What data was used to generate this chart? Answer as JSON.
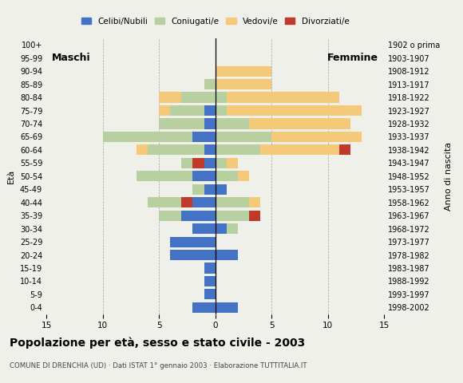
{
  "age_groups": [
    "0-4",
    "5-9",
    "10-14",
    "15-19",
    "20-24",
    "25-29",
    "30-34",
    "35-39",
    "40-44",
    "45-49",
    "50-54",
    "55-59",
    "60-64",
    "65-69",
    "70-74",
    "75-79",
    "80-84",
    "85-89",
    "90-94",
    "95-99",
    "100+"
  ],
  "birth_years": [
    "1998-2002",
    "1993-1997",
    "1988-1992",
    "1983-1987",
    "1978-1982",
    "1973-1977",
    "1968-1972",
    "1963-1967",
    "1958-1962",
    "1953-1957",
    "1948-1952",
    "1943-1947",
    "1938-1942",
    "1933-1937",
    "1928-1932",
    "1923-1927",
    "1918-1922",
    "1913-1917",
    "1908-1912",
    "1903-1907",
    "1902 o prima"
  ],
  "colors": {
    "celibi": "#4472c4",
    "coniugati": "#b8cfa0",
    "vedovi": "#f5c97a",
    "divorziati": "#c0392b"
  },
  "males": {
    "celibi": [
      2,
      1,
      1,
      1,
      4,
      4,
      2,
      3,
      2,
      1,
      2,
      1,
      1,
      2,
      1,
      1,
      0,
      0,
      0,
      0,
      0
    ],
    "coniugati": [
      0,
      0,
      0,
      0,
      0,
      0,
      0,
      2,
      3,
      1,
      5,
      1,
      5,
      8,
      4,
      3,
      3,
      1,
      0,
      0,
      0
    ],
    "vedovi": [
      0,
      0,
      0,
      0,
      0,
      0,
      0,
      0,
      0,
      0,
      0,
      0,
      1,
      0,
      0,
      1,
      2,
      0,
      0,
      0,
      0
    ],
    "divorziati": [
      0,
      0,
      0,
      0,
      0,
      0,
      0,
      0,
      1,
      0,
      0,
      1,
      0,
      0,
      0,
      0,
      0,
      0,
      0,
      0,
      0
    ]
  },
  "females": {
    "celibi": [
      2,
      0,
      0,
      0,
      2,
      0,
      1,
      0,
      0,
      1,
      0,
      0,
      0,
      0,
      0,
      0,
      0,
      0,
      0,
      0,
      0
    ],
    "coniugati": [
      0,
      0,
      0,
      0,
      0,
      0,
      1,
      3,
      3,
      0,
      2,
      1,
      4,
      5,
      3,
      1,
      1,
      0,
      0,
      0,
      0
    ],
    "vedovi": [
      0,
      0,
      0,
      0,
      0,
      0,
      0,
      0,
      1,
      0,
      1,
      1,
      7,
      8,
      9,
      12,
      10,
      5,
      5,
      0,
      0
    ],
    "divorziati": [
      0,
      0,
      0,
      0,
      0,
      0,
      0,
      1,
      0,
      0,
      0,
      0,
      1,
      0,
      0,
      0,
      0,
      0,
      0,
      0,
      0
    ]
  },
  "xlim": 15,
  "title": "Popolazione per età, sesso e stato civile - 2003",
  "subtitle": "COMUNE DI DRENCHIA (UD) · Dati ISTAT 1° gennaio 2003 · Elaborazione TUTTITALIA.IT",
  "xlabel_left": "Maschi",
  "xlabel_right": "Femmine",
  "ylabel_left": "Età",
  "ylabel_right": "Anno di nascita",
  "legend_labels": [
    "Celibi/Nubili",
    "Coniugati/e",
    "Vedovi/e",
    "Divorziati/e"
  ],
  "bg_color": "#f0f0ea"
}
